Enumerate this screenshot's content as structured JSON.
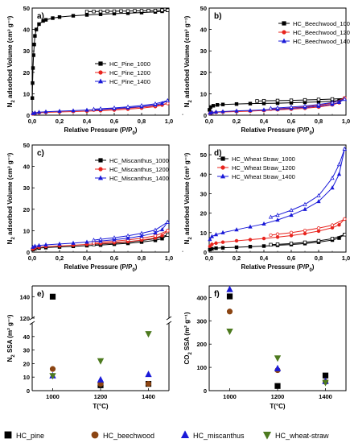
{
  "figure": {
    "bottom_legend": [
      {
        "label": "HC_pine",
        "color": "#000000",
        "marker": "square"
      },
      {
        "label": "HC_beechwood",
        "color": "#8B4513",
        "marker": "circle"
      },
      {
        "label": "HC_miscanthus",
        "color": "#1a1ad8",
        "marker": "triangle"
      },
      {
        "label": "HC_wheat-straw",
        "color": "#4d7a1f",
        "marker": "triangle-down"
      }
    ]
  },
  "chart_data": [
    {
      "panel": "a)",
      "type": "line",
      "xlabel": "Relative Pressure (P/P0)",
      "ylabel": "N2 adsorbed Volume (cm3 g-1)",
      "xlim": [
        0,
        1
      ],
      "ylim": [
        0,
        50
      ],
      "xticks": [
        "0,0",
        "0,2",
        "0,4",
        "0,6",
        "0,8",
        "1,0"
      ],
      "yticks": [
        "0",
        "10",
        "20",
        "30",
        "40",
        "50"
      ],
      "legend_position": "center-right",
      "series": [
        {
          "name": "HC_Pine_1000",
          "color": "#000000",
          "marker": "square",
          "x": [
            0.001,
            0.003,
            0.006,
            0.01,
            0.015,
            0.02,
            0.03,
            0.05,
            0.08,
            0.1,
            0.15,
            0.2,
            0.3,
            0.4,
            0.5,
            0.6,
            0.7,
            0.8,
            0.9,
            0.95,
            0.99
          ],
          "y": [
            8,
            15,
            22,
            28,
            33,
            37,
            40,
            42.5,
            44,
            44.5,
            45.3,
            45.8,
            46.4,
            46.8,
            47.1,
            47.4,
            47.6,
            47.9,
            48.2,
            48.5,
            49
          ],
          "desorption_x": [
            0.99,
            0.95,
            0.9,
            0.85,
            0.8,
            0.75,
            0.7,
            0.65,
            0.6,
            0.55,
            0.5,
            0.45,
            0.4
          ],
          "desorption_y": [
            49,
            49,
            48.8,
            48.8,
            48.7,
            48.7,
            48.6,
            48.6,
            48.5,
            48.5,
            48.4,
            48.4,
            48.3
          ]
        },
        {
          "name": "HC_Pine_1200",
          "color": "#e8241e",
          "marker": "circle",
          "x": [
            0.005,
            0.02,
            0.05,
            0.1,
            0.2,
            0.3,
            0.4,
            0.5,
            0.6,
            0.7,
            0.8,
            0.9,
            0.95,
            0.99
          ],
          "y": [
            0.6,
            0.9,
            1.1,
            1.3,
            1.5,
            1.7,
            1.9,
            2.1,
            2.4,
            2.8,
            3.3,
            4,
            4.7,
            5.5
          ],
          "desorption_x": [
            0.99,
            0.9,
            0.8,
            0.7,
            0.6,
            0.5,
            0.45
          ],
          "desorption_y": [
            5.5,
            4.4,
            3.8,
            3.3,
            2.9,
            2.6,
            2.4
          ]
        },
        {
          "name": "HC_Pine_1400",
          "color": "#1a1ad8",
          "marker": "triangle",
          "x": [
            0.005,
            0.02,
            0.05,
            0.1,
            0.2,
            0.3,
            0.4,
            0.5,
            0.6,
            0.7,
            0.8,
            0.9,
            0.95,
            0.99
          ],
          "y": [
            0.8,
            1.1,
            1.4,
            1.6,
            1.9,
            2.1,
            2.4,
            2.7,
            3.1,
            3.5,
            4,
            4.8,
            5.5,
            6.8
          ],
          "desorption_x": [
            0.99,
            0.9,
            0.8,
            0.7,
            0.6,
            0.5,
            0.45
          ],
          "desorption_y": [
            6.8,
            5.3,
            4.5,
            3.9,
            3.4,
            3,
            2.8
          ]
        }
      ]
    },
    {
      "panel": "b)",
      "type": "line",
      "xlabel": "Relative Pressure (P/P0)",
      "ylabel": "N2 adsorbed Volume (cm3 g-1)",
      "xlim": [
        0,
        1
      ],
      "ylim": [
        0,
        50
      ],
      "xticks": [
        "0,0",
        "0,2",
        "0,4",
        "0,6",
        "0,8",
        "1,0"
      ],
      "yticks": [
        "0",
        "10",
        "20",
        "30",
        "40",
        "50"
      ],
      "legend_position": "top-right",
      "series": [
        {
          "name": "HC_Beechwood_1000",
          "color": "#000000",
          "marker": "square",
          "x": [
            0.002,
            0.01,
            0.03,
            0.06,
            0.1,
            0.2,
            0.3,
            0.4,
            0.5,
            0.6,
            0.7,
            0.8,
            0.9,
            0.95,
            0.99
          ],
          "y": [
            2.5,
            3.8,
            4.4,
            4.8,
            5,
            5.2,
            5.4,
            5.5,
            5.6,
            5.8,
            6,
            6.2,
            6.5,
            6.9,
            7.8
          ],
          "desorption_x": [
            0.99,
            0.9,
            0.8,
            0.7,
            0.6,
            0.5,
            0.4,
            0.35
          ],
          "desorption_y": [
            7.8,
            7.5,
            7.3,
            7.1,
            6.9,
            6.8,
            6.7,
            6.6
          ]
        },
        {
          "name": "HC_Beechwood_1200",
          "color": "#e8241e",
          "marker": "circle",
          "x": [
            0.005,
            0.02,
            0.05,
            0.1,
            0.2,
            0.3,
            0.4,
            0.5,
            0.6,
            0.7,
            0.8,
            0.9,
            0.95,
            0.99
          ],
          "y": [
            0.8,
            1.1,
            1.3,
            1.5,
            1.7,
            1.9,
            2.2,
            2.5,
            2.8,
            3.2,
            3.8,
            4.8,
            5.8,
            8
          ],
          "desorption_x": [
            0.99,
            0.9,
            0.8,
            0.7,
            0.6,
            0.5,
            0.45
          ],
          "desorption_y": [
            8,
            5.6,
            4.6,
            3.9,
            3.4,
            3,
            2.8
          ]
        },
        {
          "name": "HC_Beechwood_1400",
          "color": "#1a1ad8",
          "marker": "triangle",
          "x": [
            0.005,
            0.02,
            0.05,
            0.1,
            0.2,
            0.3,
            0.4,
            0.5,
            0.6,
            0.7,
            0.8,
            0.9,
            0.95,
            0.99
          ],
          "y": [
            1,
            1.3,
            1.5,
            1.7,
            2,
            2.2,
            2.5,
            2.8,
            3.2,
            3.6,
            4.2,
            5.1,
            6,
            7.5
          ],
          "desorption_x": [
            0.99,
            0.9,
            0.8,
            0.7,
            0.6,
            0.5,
            0.45
          ],
          "desorption_y": [
            7.5,
            5.9,
            5,
            4.3,
            3.8,
            3.4,
            3.2
          ]
        }
      ]
    },
    {
      "panel": "c)",
      "type": "line",
      "xlabel": "Relative Pressure (P/P0)",
      "ylabel": "N2 adsorbed Volume (cm3 g-1)",
      "xlim": [
        0,
        1
      ],
      "ylim": [
        0,
        50
      ],
      "xticks": [
        "0,0",
        "0,2",
        "0,4",
        "0,6",
        "0,8",
        "1,0"
      ],
      "yticks": [
        "0",
        "10",
        "20",
        "30",
        "40",
        "50"
      ],
      "legend_position": "top-right",
      "series": [
        {
          "name": "HC_Miscanthus_1000",
          "color": "#000000",
          "marker": "square",
          "x": [
            0.005,
            0.02,
            0.05,
            0.1,
            0.2,
            0.3,
            0.4,
            0.5,
            0.6,
            0.7,
            0.8,
            0.9,
            0.95,
            0.99
          ],
          "y": [
            1.2,
            1.6,
            1.9,
            2.1,
            2.4,
            2.7,
            3,
            3.3,
            3.7,
            4.1,
            4.7,
            5.5,
            6.3,
            8
          ],
          "desorption_x": [
            0.99,
            0.9,
            0.8,
            0.7,
            0.6,
            0.5,
            0.45
          ],
          "desorption_y": [
            8,
            6.3,
            5.4,
            4.7,
            4.2,
            3.8,
            3.6
          ]
        },
        {
          "name": "HC_Miscanthus_1200",
          "color": "#e8241e",
          "marker": "circle",
          "x": [
            0.005,
            0.02,
            0.05,
            0.1,
            0.2,
            0.3,
            0.4,
            0.5,
            0.6,
            0.7,
            0.8,
            0.9,
            0.95,
            0.99
          ],
          "y": [
            1.5,
            2,
            2.3,
            2.6,
            2.9,
            3.2,
            3.6,
            4,
            4.4,
            4.9,
            5.6,
            6.6,
            7.7,
            10
          ],
          "desorption_x": [
            0.99,
            0.9,
            0.8,
            0.7,
            0.6,
            0.5,
            0.45
          ],
          "desorption_y": [
            10,
            7.6,
            6.5,
            5.7,
            5.1,
            4.6,
            4.3
          ]
        },
        {
          "name": "HC_Miscanthus_1400",
          "color": "#1a1ad8",
          "marker": "triangle",
          "x": [
            0.005,
            0.02,
            0.05,
            0.1,
            0.2,
            0.3,
            0.4,
            0.5,
            0.6,
            0.7,
            0.8,
            0.9,
            0.95,
            0.99
          ],
          "y": [
            2.3,
            2.8,
            3.1,
            3.4,
            3.8,
            4.2,
            4.7,
            5.2,
            5.8,
            6.5,
            7.5,
            9,
            10.5,
            14
          ],
          "desorption_x": [
            0.99,
            0.9,
            0.8,
            0.7,
            0.6,
            0.5,
            0.45
          ],
          "desorption_y": [
            14,
            10.3,
            8.8,
            7.6,
            6.7,
            6,
            5.6
          ]
        }
      ]
    },
    {
      "panel": "d)",
      "type": "line",
      "xlabel": "Relative Pressure (P/P0)",
      "ylabel": "N2 adsorbed Volume (cm3 g-1)",
      "xlim": [
        0,
        1
      ],
      "ylim": [
        0,
        55
      ],
      "xticks": [
        "0,0",
        "0,2",
        "0,4",
        "0,6",
        "0,8",
        "1,0"
      ],
      "yticks": [
        "0",
        "10",
        "20",
        "30",
        "40",
        "50"
      ],
      "legend_position": "top-left",
      "series": [
        {
          "name": "HC_Wheat Straw_1000",
          "color": "#000000",
          "marker": "square",
          "x": [
            0.005,
            0.02,
            0.05,
            0.1,
            0.2,
            0.3,
            0.4,
            0.5,
            0.6,
            0.7,
            0.8,
            0.9,
            0.95,
            0.99
          ],
          "y": [
            1.3,
            1.7,
            2,
            2.2,
            2.5,
            2.8,
            3.1,
            3.5,
            3.9,
            4.4,
            5.1,
            6.2,
            7.2,
            9
          ],
          "desorption_x": [
            0.99,
            0.9,
            0.8,
            0.7,
            0.6,
            0.5,
            0.45
          ],
          "desorption_y": [
            9,
            6.9,
            5.8,
            5,
            4.4,
            4,
            3.8
          ]
        },
        {
          "name": "HC_Wheat Straw_1200",
          "color": "#e8241e",
          "marker": "circle",
          "x": [
            0.005,
            0.02,
            0.05,
            0.1,
            0.2,
            0.3,
            0.4,
            0.5,
            0.6,
            0.7,
            0.8,
            0.9,
            0.95,
            0.99
          ],
          "y": [
            3,
            4,
            4.6,
            5.1,
            5.8,
            6.4,
            7,
            7.7,
            8.5,
            9.5,
            10.8,
            12.5,
            14,
            17
          ],
          "desorption_x": [
            0.99,
            0.9,
            0.8,
            0.7,
            0.6,
            0.5,
            0.45
          ],
          "desorption_y": [
            17,
            13.8,
            12.3,
            11.1,
            10,
            9.2,
            8.7
          ]
        },
        {
          "name": "HC_Wheat Straw_1400",
          "color": "#1a1ad8",
          "marker": "triangle",
          "x": [
            0.005,
            0.02,
            0.05,
            0.1,
            0.2,
            0.3,
            0.4,
            0.5,
            0.6,
            0.7,
            0.8,
            0.9,
            0.95,
            0.99
          ],
          "y": [
            6.5,
            8,
            9,
            10,
            11.5,
            13,
            14.5,
            16.5,
            19,
            22,
            26,
            33,
            40,
            53
          ],
          "desorption_x": [
            0.99,
            0.95,
            0.9,
            0.8,
            0.7,
            0.6,
            0.5,
            0.45
          ],
          "desorption_y": [
            53,
            45,
            38,
            29,
            24.5,
            21.5,
            19,
            18
          ]
        }
      ]
    },
    {
      "panel": "e)",
      "type": "scatter",
      "xlabel": "T(°C)",
      "ylabel": "N2 SSA (m2 g-1)",
      "x_categories": [
        "1000",
        "1200",
        "1400"
      ],
      "axis_break": true,
      "ylim_lower": [
        0,
        50
      ],
      "ylim_upper": [
        120,
        150
      ],
      "yticks": [
        "0",
        "10",
        "20",
        "30",
        "40",
        "120",
        "140"
      ],
      "series": [
        {
          "name": "HC_pine",
          "color": "#000000",
          "marker": "square",
          "values": [
            140,
            4,
            5
          ]
        },
        {
          "name": "HC_beechwood",
          "color": "#8B4513",
          "marker": "circle",
          "values": [
            16,
            5,
            5
          ]
        },
        {
          "name": "HC_miscanthus",
          "color": "#1a1ad8",
          "marker": "triangle",
          "values": [
            11,
            8,
            12
          ]
        },
        {
          "name": "HC_wheat-straw",
          "color": "#4d7a1f",
          "marker": "triangle-down",
          "values": [
            11,
            22,
            42
          ]
        }
      ]
    },
    {
      "panel": "f)",
      "type": "scatter",
      "xlabel": "T(°C)",
      "ylabel": "CO2 SSA (m2 g-1)",
      "x_categories": [
        "1000",
        "1200",
        "1400"
      ],
      "ylim": [
        0,
        450
      ],
      "yticks": [
        "0",
        "100",
        "200",
        "300",
        "400"
      ],
      "series": [
        {
          "name": "HC_pine",
          "color": "#000000",
          "marker": "square",
          "values": [
            405,
            20,
            65
          ]
        },
        {
          "name": "HC_beechwood",
          "color": "#8B4513",
          "marker": "circle",
          "values": [
            340,
            88,
            38
          ]
        },
        {
          "name": "HC_miscanthus",
          "color": "#1a1ad8",
          "marker": "triangle",
          "values": [
            435,
            95,
            40
          ]
        },
        {
          "name": "HC_wheat-straw",
          "color": "#4d7a1f",
          "marker": "triangle-down",
          "values": [
            255,
            140,
            35
          ]
        }
      ]
    }
  ]
}
